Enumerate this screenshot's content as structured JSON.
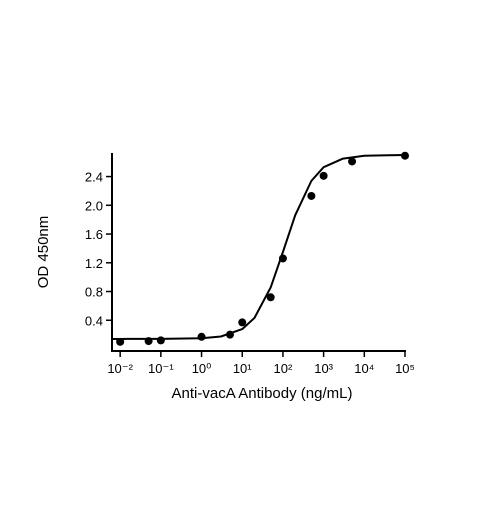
{
  "chart_data": {
    "type": "scatter",
    "x_label": "Anti-vacA Antibody (ng/mL)",
    "y_label": "OD 450nm",
    "xscale": "log",
    "xlim": [
      0.0063,
      100000
    ],
    "xticks": [
      {
        "value": 0.01,
        "label": "10⁻²"
      },
      {
        "value": 0.1,
        "label": "10⁻¹"
      },
      {
        "value": 1,
        "label": "10⁰"
      },
      {
        "value": 10,
        "label": "10¹"
      },
      {
        "value": 100,
        "label": "10²"
      },
      {
        "value": 1000,
        "label": "10³"
      },
      {
        "value": 10000,
        "label": "10⁴"
      },
      {
        "value": 100000,
        "label": "10⁵"
      }
    ],
    "ylim": [
      0,
      2.7
    ],
    "yticks": [
      0.4,
      0.8,
      1.2,
      1.6,
      {
        "value": 2,
        "label": "2.0"
      },
      2.4
    ],
    "series": [
      {
        "type": "scatter",
        "color": "#000000",
        "x": [
          0.01,
          0.05,
          0.1,
          1,
          5,
          10,
          50,
          100,
          500,
          1000,
          5000,
          100000
        ],
        "values": [
          0.1,
          0.11,
          0.12,
          0.17,
          0.2,
          0.37,
          0.72,
          1.26,
          2.13,
          2.41,
          2.61,
          2.69
        ]
      },
      {
        "type": "line",
        "color": "#000000",
        "x": [
          0.0063,
          0.01,
          0.1,
          1,
          3,
          10,
          20,
          50,
          100,
          200,
          500,
          1000,
          3000,
          10000,
          100000
        ],
        "values": [
          0.14,
          0.14,
          0.141,
          0.149,
          0.174,
          0.277,
          0.433,
          0.857,
          1.35,
          1.86,
          2.34,
          2.53,
          2.65,
          2.69,
          2.7
        ]
      }
    ]
  }
}
